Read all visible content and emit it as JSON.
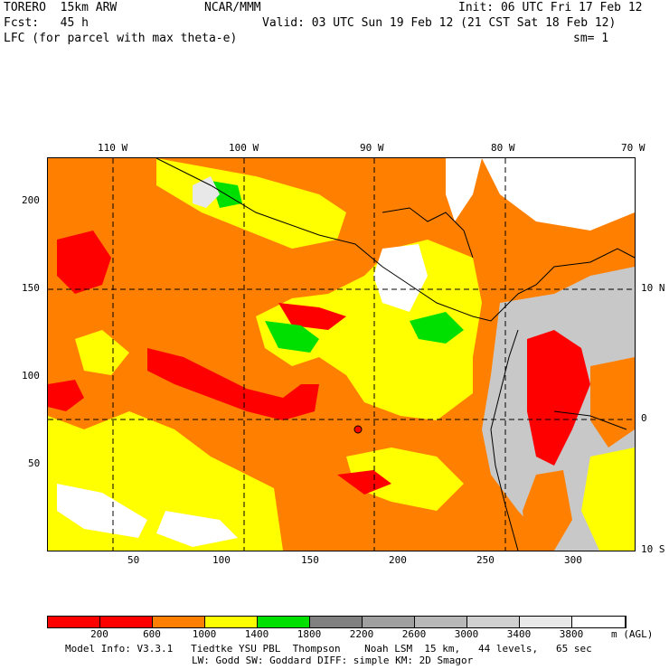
{
  "header": {
    "model": "TORERO  15km ARW",
    "org": "NCAR/MMM",
    "init": "Init: 06 UTC Fri 17 Feb 12",
    "fcst": "Fcst:   45 h",
    "valid": "Valid: 03 UTC Sun 19 Feb 12 (21 CST Sat 18 Feb 12)",
    "field": "LFC (for parcel with max theta-e)",
    "smooth": "sm= 1"
  },
  "map": {
    "top_lon_labels": [
      "110 W",
      "100 W",
      "90 W",
      "80 W",
      "70 W"
    ],
    "left_grid_labels": [
      "200",
      "150",
      "100",
      "50"
    ],
    "right_lat_labels": [
      "10 N",
      "0",
      "10 S"
    ],
    "bottom_grid_labels": [
      "50",
      "100",
      "150",
      "200",
      "250",
      "300"
    ]
  },
  "legend": {
    "colors": [
      "#ff0000",
      "#ff0000",
      "#ff8000",
      "#ffff00",
      "#00e000",
      "#808080",
      "#a0a0a0",
      "#b8b8b8",
      "#d0d0d0",
      "#e8e8e8",
      "#ffffff"
    ],
    "labels": [
      "200",
      "600",
      "1000",
      "1400",
      "1800",
      "2200",
      "2600",
      "3000",
      "3400",
      "3800"
    ],
    "units": "m (AGL)"
  },
  "footer": {
    "line1": "Model Info: V3.3.1   Tiedtke YSU PBL  Thompson    Noah LSM  15 km,   44 levels,   65 sec",
    "line2": "LW: Godd SW: Goddard DIFF: simple KM: 2D Smagor"
  }
}
